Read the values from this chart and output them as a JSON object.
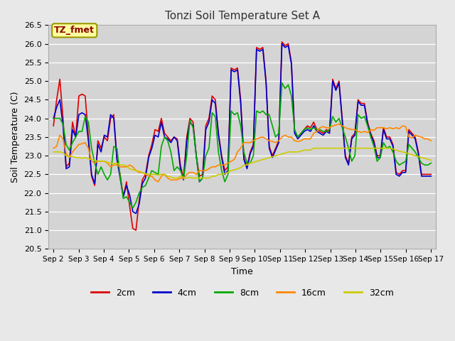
{
  "title": "Tonzi Soil Temperature Set A",
  "xlabel": "Time",
  "ylabel": "Soil Temperature (C)",
  "ylim": [
    20.5,
    26.5
  ],
  "annotation": "TZ_fmet",
  "fig_facecolor": "#e8e8e8",
  "ax_facecolor": "#d4d4d4",
  "series_colors": [
    "#dd0000",
    "#0000cc",
    "#00aa00",
    "#ff8800",
    "#cccc00"
  ],
  "series_labels": [
    "2cm",
    "4cm",
    "8cm",
    "16cm",
    "32cm"
  ],
  "x_ticks": [
    "Sep 2",
    "Sep 3",
    "Sep 4",
    "Sep 5",
    "Sep 6",
    "Sep 7",
    "Sep 8",
    "Sep 9",
    "Sep 10",
    "Sep 11",
    "Sep 12",
    "Sep 13",
    "Sep 14",
    "Sep 15",
    "Sep 16",
    "Sep 17"
  ],
  "yticks": [
    20.5,
    21.0,
    21.5,
    22.0,
    22.5,
    23.0,
    23.5,
    24.0,
    24.5,
    25.0,
    25.5,
    26.0,
    26.5
  ],
  "n_days": 15,
  "pts_per_day": 8,
  "data_2cm": [
    23.8,
    24.5,
    25.05,
    24.0,
    22.7,
    22.8,
    23.9,
    23.5,
    24.6,
    24.65,
    24.6,
    23.5,
    22.45,
    22.2,
    23.4,
    23.2,
    23.5,
    23.4,
    24.0,
    24.1,
    22.9,
    22.5,
    21.9,
    22.3,
    21.65,
    21.05,
    21.0,
    21.8,
    22.35,
    22.5,
    23.0,
    23.3,
    23.7,
    23.65,
    24.0,
    23.6,
    23.5,
    23.4,
    23.5,
    23.45,
    22.75,
    22.4,
    23.5,
    24.0,
    23.9,
    23.0,
    22.45,
    22.5,
    23.8,
    24.0,
    24.6,
    24.5,
    23.6,
    23.0,
    22.6,
    22.7,
    25.35,
    25.3,
    25.35,
    24.5,
    22.95,
    22.7,
    23.1,
    23.3,
    25.9,
    25.85,
    25.9,
    25.0,
    23.25,
    23.0,
    23.2,
    23.4,
    26.05,
    25.95,
    26.0,
    25.5,
    23.65,
    23.5,
    23.6,
    23.7,
    23.8,
    23.75,
    23.9,
    23.7,
    23.65,
    23.6,
    23.7,
    23.65,
    25.05,
    24.8,
    25.0,
    24.0,
    23.0,
    22.8,
    23.5,
    23.6,
    24.5,
    24.4,
    24.4,
    23.9,
    23.6,
    23.4,
    23.0,
    23.0,
    23.75,
    23.5,
    23.5,
    23.3,
    22.55,
    22.5,
    22.6,
    22.6,
    23.7,
    23.6,
    23.5,
    23.1,
    22.5,
    22.5,
    22.5,
    22.5
  ],
  "data_4cm": [
    24.0,
    24.3,
    24.5,
    23.8,
    22.65,
    22.7,
    23.7,
    23.5,
    24.1,
    24.15,
    24.1,
    23.4,
    22.5,
    22.25,
    23.3,
    23.1,
    23.55,
    23.5,
    24.1,
    24.0,
    22.9,
    22.4,
    21.9,
    22.2,
    21.95,
    21.5,
    21.45,
    21.7,
    22.25,
    22.4,
    22.95,
    23.2,
    23.55,
    23.5,
    23.9,
    23.5,
    23.45,
    23.35,
    23.5,
    23.4,
    22.65,
    22.35,
    23.4,
    23.9,
    23.8,
    23.0,
    22.3,
    22.4,
    23.7,
    23.9,
    24.5,
    24.4,
    23.55,
    22.95,
    22.5,
    22.6,
    25.3,
    25.25,
    25.3,
    24.4,
    22.9,
    22.65,
    23.05,
    23.25,
    25.85,
    25.8,
    25.85,
    24.95,
    23.2,
    22.95,
    23.15,
    23.35,
    26.0,
    25.9,
    25.95,
    25.45,
    23.6,
    23.45,
    23.55,
    23.65,
    23.7,
    23.65,
    23.8,
    23.65,
    23.6,
    23.55,
    23.65,
    23.6,
    25.0,
    24.75,
    24.95,
    23.95,
    22.95,
    22.75,
    23.45,
    23.55,
    24.45,
    24.35,
    24.35,
    23.85,
    23.55,
    23.35,
    22.95,
    22.95,
    23.7,
    23.45,
    23.45,
    23.25,
    22.5,
    22.45,
    22.55,
    22.55,
    23.65,
    23.55,
    23.45,
    23.05,
    22.45,
    22.45,
    22.45,
    22.45
  ],
  "data_8cm": [
    24.0,
    24.0,
    24.0,
    23.85,
    23.3,
    23.15,
    23.35,
    23.5,
    23.65,
    23.65,
    24.05,
    23.9,
    23.2,
    22.8,
    22.5,
    22.7,
    22.5,
    22.35,
    22.5,
    23.25,
    23.2,
    22.45,
    21.85,
    21.9,
    21.75,
    21.6,
    21.75,
    22.0,
    22.15,
    22.2,
    22.4,
    22.6,
    22.55,
    22.5,
    23.25,
    23.5,
    23.4,
    23.1,
    22.6,
    22.7,
    22.6,
    22.4,
    23.0,
    23.95,
    23.75,
    23.0,
    22.3,
    22.4,
    23.0,
    23.2,
    24.15,
    24.05,
    23.1,
    22.6,
    22.3,
    22.5,
    24.2,
    24.1,
    24.15,
    23.8,
    23.1,
    22.8,
    22.8,
    23.0,
    24.2,
    24.15,
    24.2,
    24.1,
    24.1,
    23.8,
    23.5,
    23.6,
    24.95,
    24.8,
    24.9,
    24.6,
    23.7,
    23.5,
    23.6,
    23.7,
    23.75,
    23.7,
    23.75,
    23.7,
    23.7,
    23.65,
    23.65,
    23.7,
    24.05,
    23.9,
    24.0,
    23.75,
    23.5,
    23.2,
    22.85,
    23.0,
    24.1,
    24.0,
    24.05,
    23.8,
    23.5,
    23.25,
    22.85,
    22.95,
    23.35,
    23.2,
    23.25,
    23.1,
    22.85,
    22.75,
    22.8,
    22.85,
    23.3,
    23.2,
    23.1,
    22.95,
    22.8,
    22.75,
    22.75,
    22.8
  ],
  "data_16cm": [
    23.2,
    23.25,
    23.55,
    23.45,
    23.05,
    22.95,
    23.1,
    23.2,
    23.3,
    23.32,
    23.35,
    23.2,
    22.85,
    22.8,
    22.85,
    22.85,
    22.85,
    22.8,
    22.7,
    22.75,
    22.75,
    22.7,
    22.7,
    22.7,
    22.75,
    22.7,
    22.6,
    22.55,
    22.55,
    22.5,
    22.45,
    22.45,
    22.35,
    22.3,
    22.45,
    22.5,
    22.4,
    22.35,
    22.35,
    22.35,
    22.4,
    22.38,
    22.5,
    22.55,
    22.55,
    22.5,
    22.6,
    22.6,
    22.6,
    22.65,
    22.7,
    22.7,
    22.75,
    22.75,
    22.75,
    22.8,
    22.85,
    22.9,
    23.1,
    23.2,
    23.35,
    23.35,
    23.35,
    23.4,
    23.45,
    23.48,
    23.5,
    23.45,
    23.4,
    23.38,
    23.35,
    23.4,
    23.5,
    23.55,
    23.5,
    23.5,
    23.4,
    23.38,
    23.4,
    23.45,
    23.45,
    23.45,
    23.6,
    23.65,
    23.75,
    23.78,
    23.75,
    23.75,
    23.8,
    23.82,
    23.85,
    23.8,
    23.75,
    23.72,
    23.7,
    23.7,
    23.65,
    23.62,
    23.65,
    23.62,
    23.7,
    23.68,
    23.75,
    23.75,
    23.75,
    23.72,
    23.75,
    23.72,
    23.75,
    23.72,
    23.8,
    23.78,
    23.5,
    23.48,
    23.55,
    23.52,
    23.5,
    23.45,
    23.45,
    23.4
  ],
  "data_32cm": [
    23.1,
    23.1,
    23.1,
    23.08,
    23.0,
    22.98,
    22.98,
    22.95,
    22.95,
    22.93,
    22.95,
    22.92,
    22.9,
    22.88,
    22.85,
    22.85,
    22.85,
    22.82,
    22.8,
    22.78,
    22.8,
    22.75,
    22.75,
    22.72,
    22.65,
    22.62,
    22.6,
    22.58,
    22.55,
    22.52,
    22.5,
    22.5,
    22.5,
    22.48,
    22.5,
    22.5,
    22.45,
    22.43,
    22.4,
    22.4,
    22.45,
    22.42,
    22.4,
    22.42,
    22.4,
    22.4,
    22.4,
    22.4,
    22.4,
    22.4,
    22.45,
    22.45,
    22.5,
    22.5,
    22.52,
    22.55,
    22.6,
    22.62,
    22.65,
    22.68,
    22.75,
    22.75,
    22.8,
    22.82,
    22.85,
    22.87,
    22.9,
    22.92,
    22.95,
    22.97,
    23.0,
    23.02,
    23.05,
    23.07,
    23.1,
    23.1,
    23.1,
    23.1,
    23.12,
    23.15,
    23.15,
    23.15,
    23.2,
    23.2,
    23.2,
    23.2,
    23.2,
    23.2,
    23.2,
    23.2,
    23.2,
    23.2,
    23.2,
    23.2,
    23.2,
    23.2,
    23.2,
    23.2,
    23.2,
    23.2,
    23.2,
    23.2,
    23.2,
    23.2,
    23.2,
    23.2,
    23.2,
    23.18,
    23.15,
    23.12,
    23.1,
    23.08,
    23.05,
    23.02,
    23.0,
    22.98,
    22.95,
    22.93,
    22.9,
    22.88
  ]
}
